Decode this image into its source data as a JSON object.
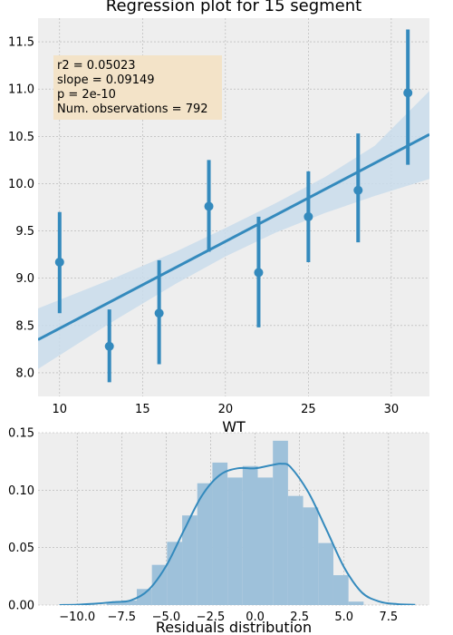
{
  "chart_data": [
    {
      "type": "scatter",
      "title": "Regression plot for 15 segment",
      "xlabel": "WT",
      "ylabel": "",
      "xlim": [
        8.7,
        32.3
      ],
      "ylim": [
        7.75,
        11.75
      ],
      "xticks": [
        10,
        15,
        20,
        25,
        30
      ],
      "yticks": [
        8.0,
        8.5,
        9.0,
        9.5,
        10.0,
        10.5,
        11.0,
        11.5
      ],
      "grid": true,
      "points": [
        {
          "x": 10,
          "y": 9.17,
          "lo": 8.63,
          "hi": 9.7
        },
        {
          "x": 13,
          "y": 8.28,
          "lo": 7.9,
          "hi": 8.67
        },
        {
          "x": 16,
          "y": 8.63,
          "lo": 8.09,
          "hi": 9.19
        },
        {
          "x": 19,
          "y": 9.76,
          "lo": 9.28,
          "hi": 10.25
        },
        {
          "x": 22,
          "y": 9.06,
          "lo": 8.48,
          "hi": 9.65
        },
        {
          "x": 25,
          "y": 9.65,
          "lo": 9.17,
          "hi": 10.13
        },
        {
          "x": 28,
          "y": 9.93,
          "lo": 9.38,
          "hi": 10.53
        },
        {
          "x": 31,
          "y": 10.96,
          "lo": 10.2,
          "hi": 11.63
        }
      ],
      "regression": {
        "x0": 8.7,
        "y0": 8.35,
        "x1": 32.3,
        "y1": 10.52
      },
      "ci_band": {
        "x": [
          8.7,
          13,
          17,
          20,
          23,
          26,
          29,
          32.3
        ],
        "lo": [
          8.04,
          8.52,
          8.94,
          9.23,
          9.48,
          9.69,
          9.87,
          10.05
        ],
        "hi": [
          8.68,
          8.98,
          9.28,
          9.53,
          9.79,
          10.07,
          10.4,
          10.98
        ]
      },
      "stats_box": [
        "r2 = 0.05023",
        "slope = 0.09149",
        "p = 2e-10",
        "Num. observations = 792"
      ],
      "colors": {
        "line": "#348abd",
        "band": "#c9dceb",
        "box": "#f3e3c8",
        "bg": "#eeeeee",
        "grid": "#b0b0b0"
      }
    },
    {
      "type": "histogram",
      "title": "",
      "xlabel": "Residuals distribution",
      "ylabel": "",
      "xlim": [
        -12.2,
        9.8
      ],
      "ylim": [
        0,
        0.15
      ],
      "xticks": [
        -10.0,
        -7.5,
        -5.0,
        -2.5,
        0.0,
        2.5,
        5.0,
        7.5
      ],
      "yticks": [
        0.0,
        0.05,
        0.1,
        0.15
      ],
      "xtick_labels": [
        "−10.0",
        "−7.5",
        "−5.0",
        "−2.5",
        "0.0",
        "2.5",
        "5.0",
        "7.5"
      ],
      "ytick_labels": [
        "0.00",
        "0.05",
        "0.10",
        "0.15"
      ],
      "grid": true,
      "bins": {
        "edges": [
          -10.9,
          -10.05,
          -9.2,
          -8.35,
          -7.5,
          -6.65,
          -5.8,
          -4.95,
          -4.1,
          -3.25,
          -2.4,
          -1.55,
          -0.7,
          0.15,
          1.0,
          1.85,
          2.7,
          3.55,
          4.4,
          5.25,
          6.1,
          6.95,
          7.8,
          8.65
        ],
        "values": [
          0.0,
          0.0,
          0.0,
          0.002,
          0.004,
          0.014,
          0.035,
          0.055,
          0.078,
          0.106,
          0.124,
          0.111,
          0.121,
          0.111,
          0.143,
          0.095,
          0.085,
          0.054,
          0.026,
          0.003,
          0.0,
          0.0,
          0.0
        ]
      },
      "kde": {
        "x": [
          -11,
          -10,
          -9,
          -8,
          -7,
          -6,
          -5,
          -4,
          -3,
          -2,
          -1,
          0,
          1,
          1.5,
          2,
          3,
          4,
          5,
          6,
          7,
          8,
          9
        ],
        "y": [
          0.0,
          0.0003,
          0.0012,
          0.0025,
          0.004,
          0.013,
          0.034,
          0.065,
          0.095,
          0.113,
          0.119,
          0.119,
          0.122,
          0.123,
          0.12,
          0.098,
          0.066,
          0.033,
          0.011,
          0.003,
          0.0008,
          0.0002
        ]
      },
      "colors": {
        "bar": "#9ec1da",
        "line": "#348abd",
        "bg": "#eeeeee",
        "grid": "#b0b0b0"
      }
    }
  ]
}
